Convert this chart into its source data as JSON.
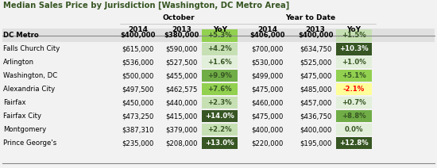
{
  "title": "Median Sales Price by Jurisdiction [Washington, DC Metro Area]",
  "col_groups": [
    "October",
    "Year to Date"
  ],
  "col_headers": [
    "2014",
    "2013",
    "YoY",
    "2014",
    "2013",
    "YoY"
  ],
  "rows": [
    {
      "jurisdiction": "DC Metro",
      "bold": true,
      "oct_2014": "$400,000",
      "oct_2013": "$380,000",
      "oct_yoy": "+5.3%",
      "ytd_2014": "$406,000",
      "ytd_2013": "$400,000",
      "ytd_yoy": "+1.5%"
    },
    {
      "jurisdiction": "Falls Church City",
      "bold": false,
      "oct_2014": "$615,000",
      "oct_2013": "$590,000",
      "oct_yoy": "+4.2%",
      "ytd_2014": "$700,000",
      "ytd_2013": "$634,750",
      "ytd_yoy": "+10.3%"
    },
    {
      "jurisdiction": "Arlington",
      "bold": false,
      "oct_2014": "$536,000",
      "oct_2013": "$527,500",
      "oct_yoy": "+1.6%",
      "ytd_2014": "$530,000",
      "ytd_2013": "$525,000",
      "ytd_yoy": "+1.0%"
    },
    {
      "jurisdiction": "Washington, DC",
      "bold": false,
      "oct_2014": "$500,000",
      "oct_2013": "$455,000",
      "oct_yoy": "+9.9%",
      "ytd_2014": "$499,000",
      "ytd_2013": "$475,000",
      "ytd_yoy": "+5.1%"
    },
    {
      "jurisdiction": "Alexandria City",
      "bold": false,
      "oct_2014": "$497,500",
      "oct_2013": "$462,575",
      "oct_yoy": "+7.6%",
      "ytd_2014": "$475,000",
      "ytd_2013": "$485,000",
      "ytd_yoy": "-2.1%"
    },
    {
      "jurisdiction": "Fairfax",
      "bold": false,
      "oct_2014": "$450,000",
      "oct_2013": "$440,000",
      "oct_yoy": "+2.3%",
      "ytd_2014": "$460,000",
      "ytd_2013": "$457,000",
      "ytd_yoy": "+0.7%"
    },
    {
      "jurisdiction": "Fairfax City",
      "bold": false,
      "oct_2014": "$473,250",
      "oct_2013": "$415,000",
      "oct_yoy": "+14.0%",
      "ytd_2014": "$475,000",
      "ytd_2013": "$436,750",
      "ytd_yoy": "+8.8%"
    },
    {
      "jurisdiction": "Montgomery",
      "bold": false,
      "oct_2014": "$387,310",
      "oct_2013": "$379,000",
      "oct_yoy": "+2.2%",
      "ytd_2014": "$400,000",
      "ytd_2013": "$400,000",
      "ytd_yoy": "0.0%"
    },
    {
      "jurisdiction": "Prince George's",
      "bold": false,
      "oct_2014": "$235,000",
      "oct_2013": "$208,000",
      "oct_yoy": "+13.0%",
      "ytd_2014": "$220,000",
      "ytd_2013": "$195,000",
      "ytd_yoy": "+12.8%"
    }
  ],
  "yoy_colors": {
    "+5.3%": "#92d050",
    "+4.2%": "#c6e0b4",
    "+1.6%": "#e2efda",
    "+9.9%": "#70ad47",
    "+7.6%": "#92d050",
    "+2.3%": "#c6e0b4",
    "+14.0%": "#375623",
    "+2.2%": "#c6e0b4",
    "+13.0%": "#375623",
    "+1.5%": "#c6e0b4",
    "+10.3%": "#375623",
    "+1.0%": "#e2efda",
    "+5.1%": "#92d050",
    "-2.1%": "#ffff99",
    "+0.7%": "#e2efda",
    "+8.8%": "#70ad47",
    "0.0%": "#e2efda",
    "+12.8%": "#375623"
  },
  "yoy_text_colors": {
    "+5.3%": "#375623",
    "+4.2%": "#375623",
    "+1.6%": "#375623",
    "+9.9%": "#375623",
    "+7.6%": "#375623",
    "+2.3%": "#375623",
    "+14.0%": "#ffffff",
    "+2.2%": "#375623",
    "+13.0%": "#ffffff",
    "+1.5%": "#375623",
    "+10.3%": "#ffffff",
    "+1.0%": "#375623",
    "+5.1%": "#375623",
    "-2.1%": "#ff0000",
    "+0.7%": "#375623",
    "+8.8%": "#375623",
    "0.0%": "#375623",
    "+12.8%": "#ffffff"
  },
  "background_color": "#f2f2f2",
  "title_color": "#375623",
  "bold_row_bg": "#e0e0e0"
}
